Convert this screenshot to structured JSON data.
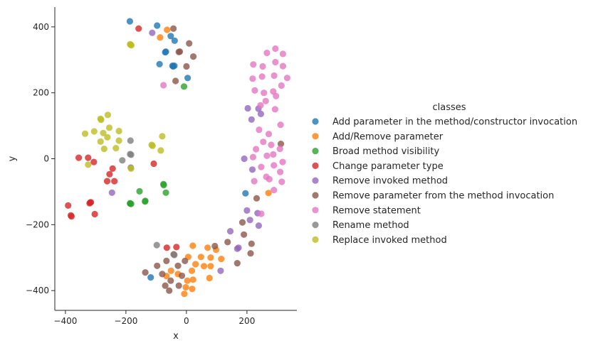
{
  "chart_data": {
    "type": "scatter",
    "xlabel": "x",
    "ylabel": "y",
    "xlim": [
      -435,
      365
    ],
    "ylim": [
      -460,
      460
    ],
    "x_ticks": [
      -400,
      -200,
      0,
      200
    ],
    "x_tick_labels": [
      "−400",
      "−200",
      "0",
      "200"
    ],
    "y_ticks": [
      -400,
      -200,
      0,
      200,
      400
    ],
    "y_tick_labels": [
      "−400",
      "−200",
      "0",
      "200",
      "400"
    ],
    "grid": false,
    "legend": {
      "title": "classes",
      "placement": "right"
    },
    "series": [
      {
        "name": "Add parameter in the method/constructor invocation",
        "color": "#1f77b4",
        "points": [
          [
            -187,
            417
          ],
          [
            -97,
            404
          ],
          [
            -52,
            372
          ],
          [
            -39,
            358
          ],
          [
            -68,
            325
          ],
          [
            -70,
            323
          ],
          [
            -46,
            282
          ],
          [
            -44,
            280
          ],
          [
            -40,
            282
          ],
          [
            -89,
            287
          ],
          [
            4,
            245
          ],
          [
            195,
            -105
          ],
          [
            -118,
            -360
          ]
        ]
      },
      {
        "name": "Add/Remove parameter",
        "color": "#ff7f0e",
        "points": [
          [
            -64,
            391
          ],
          [
            -87,
            368
          ],
          [
            271,
            -104
          ],
          [
            21,
            -264
          ],
          [
            70,
            -270
          ],
          [
            98,
            -276
          ],
          [
            6,
            -298
          ],
          [
            48,
            -298
          ],
          [
            80,
            -300
          ],
          [
            115,
            -304
          ],
          [
            30,
            -320
          ],
          [
            58,
            -326
          ],
          [
            80,
            -326
          ],
          [
            18,
            -340
          ],
          [
            -51,
            -340
          ],
          [
            -28,
            -350
          ],
          [
            -66,
            -356
          ],
          [
            3,
            -370
          ],
          [
            22,
            -367
          ],
          [
            76,
            -362
          ],
          [
            -2,
            -390
          ],
          [
            19,
            -395
          ],
          [
            -7,
            -410
          ]
        ]
      },
      {
        "name": "Broad method visibility",
        "color": "#2ca02c",
        "points": [
          [
            -8,
            219
          ],
          [
            -76,
            -77
          ],
          [
            -75,
            -80
          ],
          [
            -155,
            -99
          ],
          [
            -68,
            -103
          ],
          [
            -136,
            -128
          ],
          [
            -137,
            -130
          ],
          [
            -186,
            -135
          ],
          [
            -183,
            -137
          ],
          [
            -186,
            -136
          ]
        ]
      },
      {
        "name": "Change parameter type",
        "color": "#d62728",
        "points": [
          [
            -158,
            395
          ],
          [
            -356,
            3
          ],
          [
            -325,
            3
          ],
          [
            -306,
            -10
          ],
          [
            -108,
            -15
          ],
          [
            -254,
            -47
          ],
          [
            -262,
            -68
          ],
          [
            -238,
            -68
          ],
          [
            -244,
            -30
          ],
          [
            -318,
            -133
          ],
          [
            -320,
            -135
          ],
          [
            -316,
            -132
          ],
          [
            -391,
            -142
          ],
          [
            -382,
            -172
          ],
          [
            -380,
            -175
          ],
          [
            -303,
            -168
          ],
          [
            -65,
            -270
          ],
          [
            -33,
            -268
          ]
        ]
      },
      {
        "name": "Remove invoked method",
        "color": "#9467bd",
        "points": [
          [
            -113,
            382
          ],
          [
            203,
            153
          ],
          [
            238,
            152
          ],
          [
            246,
            136
          ],
          [
            215,
            119
          ],
          [
            191,
            0
          ],
          [
            218,
            -33
          ],
          [
            -246,
            -103
          ],
          [
            200,
            -157
          ],
          [
            235,
            -165
          ],
          [
            210,
            -186
          ],
          [
            239,
            -203
          ],
          [
            145,
            -220
          ],
          [
            172,
            -270
          ],
          [
            168,
            -273
          ],
          [
            113,
            -340
          ]
        ]
      },
      {
        "name": "Remove parameter from the method invocation",
        "color": "#8c564b",
        "points": [
          [
            -43,
            395
          ],
          [
            9,
            350
          ],
          [
            -22,
            325
          ],
          [
            -25,
            324
          ],
          [
            23,
            310
          ],
          [
            0,
            280
          ],
          [
            -36,
            236
          ],
          [
            312,
            45
          ],
          [
            232,
            -120
          ],
          [
            185,
            -193
          ],
          [
            215,
            -258
          ],
          [
            136,
            -253
          ],
          [
            94,
            -265
          ],
          [
            190,
            -230
          ],
          [
            212,
            -287
          ],
          [
            168,
            -317
          ],
          [
            -42,
            -290
          ],
          [
            -5,
            -310
          ],
          [
            -66,
            -310
          ],
          [
            -136,
            -345
          ],
          [
            -97,
            -325
          ],
          [
            -28,
            -325
          ],
          [
            -15,
            -355
          ],
          [
            -80,
            -350
          ],
          [
            -52,
            -370
          ],
          [
            -25,
            -385
          ],
          [
            -70,
            -385
          ],
          [
            -57,
            -400
          ]
        ]
      },
      {
        "name": "Remove statement",
        "color": "#e377c2",
        "points": [
          [
            -76,
            223
          ],
          [
            266,
            321
          ],
          [
            294,
            334
          ],
          [
            319,
            318
          ],
          [
            221,
            286
          ],
          [
            252,
            280
          ],
          [
            319,
            281
          ],
          [
            294,
            293
          ],
          [
            250,
            249
          ],
          [
            219,
            243
          ],
          [
            290,
            252
          ],
          [
            333,
            245
          ],
          [
            226,
            207
          ],
          [
            256,
            200
          ],
          [
            287,
            204
          ],
          [
            314,
            222
          ],
          [
            296,
            190
          ],
          [
            262,
            175
          ],
          [
            293,
            150
          ],
          [
            245,
            162
          ],
          [
            311,
            103
          ],
          [
            272,
            75
          ],
          [
            240,
            88
          ],
          [
            254,
            51
          ],
          [
            230,
            29
          ],
          [
            280,
            42
          ],
          [
            309,
            30
          ],
          [
            287,
            13
          ],
          [
            266,
            9
          ],
          [
            220,
            5
          ],
          [
            247,
            -25
          ],
          [
            289,
            -20
          ],
          [
            318,
            -10
          ],
          [
            310,
            -40
          ],
          [
            274,
            -62
          ],
          [
            224,
            -68
          ],
          [
            264,
            -55
          ],
          [
            289,
            -95
          ],
          [
            315,
            -70
          ],
          [
            247,
            -167
          ]
        ]
      },
      {
        "name": "Rename method",
        "color": "#7f7f7f",
        "points": [
          [
            -185,
            55
          ],
          [
            -186,
            14
          ],
          [
            -183,
            12
          ],
          [
            -212,
            -5
          ],
          [
            -184,
            -27
          ],
          [
            -98,
            -262
          ],
          [
            -40,
            -292
          ]
        ]
      },
      {
        "name": "Replace invoked method",
        "color": "#bcbd22",
        "points": [
          [
            -185,
            346
          ],
          [
            -182,
            344
          ],
          [
            -186,
            347
          ],
          [
            -260,
            133
          ],
          [
            -284,
            121
          ],
          [
            -282,
            118
          ],
          [
            -305,
            83
          ],
          [
            -335,
            76
          ],
          [
            -275,
            78
          ],
          [
            -255,
            94
          ],
          [
            -223,
            84
          ],
          [
            -261,
            65
          ],
          [
            -223,
            55
          ],
          [
            -284,
            52
          ],
          [
            -233,
            32
          ],
          [
            -272,
            30
          ],
          [
            -115,
            42
          ],
          [
            -112,
            39
          ],
          [
            -80,
            68
          ],
          [
            -85,
            25
          ],
          [
            -325,
            -18
          ],
          [
            -183,
            -30
          ]
        ]
      }
    ]
  }
}
